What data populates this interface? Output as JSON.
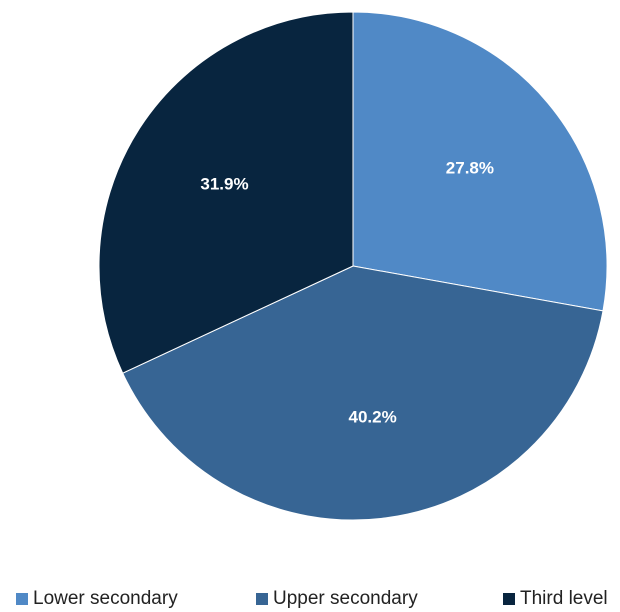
{
  "chart_data": {
    "type": "pie",
    "categories": [
      "Lower secondary",
      "Upper secondary",
      "Third level"
    ],
    "values": [
      27.8,
      40.2,
      31.9
    ],
    "value_labels": [
      "27.8%",
      "40.2%",
      "31.9%"
    ],
    "colors": [
      "#5089c6",
      "#376594",
      "#08253f"
    ],
    "start_angle_deg": 0,
    "direction": "clockwise",
    "legend_position": "bottom"
  }
}
